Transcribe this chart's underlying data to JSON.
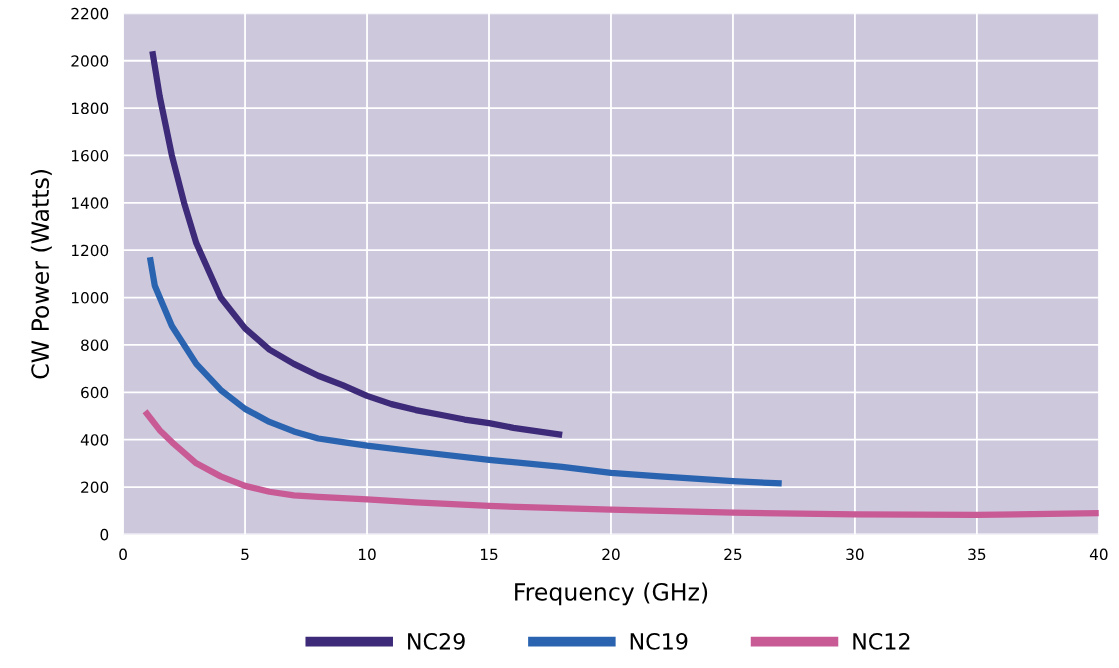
{
  "chart_data": {
    "type": "line",
    "xlabel": "Frequency (GHz)",
    "ylabel": "CW Power (Watts)",
    "xlim": [
      0,
      40
    ],
    "xticks": [
      0,
      5,
      10,
      15,
      20,
      25,
      30,
      35,
      40
    ],
    "ylim": [
      0,
      2200
    ],
    "yticks": [
      0,
      200,
      400,
      600,
      800,
      1000,
      1200,
      1400,
      1600,
      1800,
      2000,
      2200
    ],
    "grid": true,
    "legend": "bottom",
    "marker": "none",
    "line_style": "solid",
    "series": [
      {
        "name": "NC29",
        "color": "#3d2a78",
        "x": [
          1.2,
          1.5,
          2,
          2.5,
          3,
          4,
          5,
          6,
          7,
          8,
          9,
          10,
          11,
          12,
          13,
          14,
          15,
          16,
          17,
          18
        ],
        "values": [
          2040,
          1850,
          1600,
          1400,
          1230,
          1000,
          870,
          780,
          720,
          670,
          630,
          585,
          550,
          525,
          505,
          485,
          470,
          450,
          435,
          420
        ]
      },
      {
        "name": "NC19",
        "color": "#2a64b0",
        "x": [
          1.1,
          1.3,
          2,
          3,
          4,
          5,
          6,
          7,
          8,
          9,
          10,
          12,
          15,
          18,
          20,
          22,
          25,
          27
        ],
        "values": [
          1170,
          1050,
          880,
          720,
          610,
          530,
          475,
          435,
          405,
          390,
          375,
          350,
          315,
          285,
          260,
          245,
          225,
          215
        ]
      },
      {
        "name": "NC12",
        "color": "#c85a96",
        "x": [
          0.9,
          1.5,
          2,
          3,
          4,
          5,
          6,
          7,
          8,
          10,
          12,
          15,
          20,
          25,
          30,
          35,
          40
        ],
        "values": [
          520,
          440,
          390,
          300,
          245,
          205,
          180,
          165,
          158,
          148,
          135,
          120,
          105,
          92,
          85,
          82,
          90
        ]
      }
    ]
  }
}
